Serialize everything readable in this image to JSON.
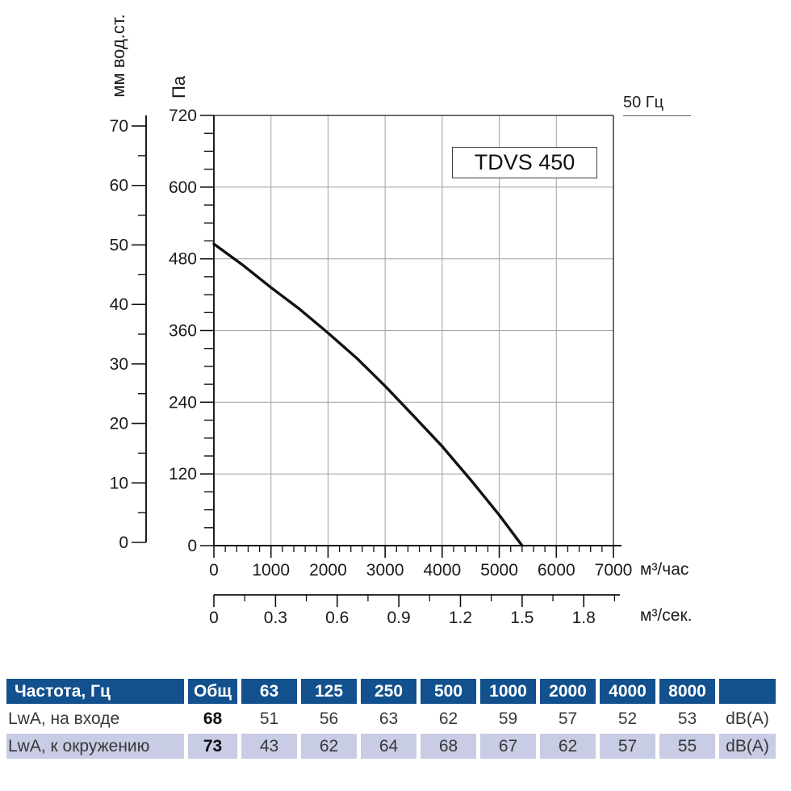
{
  "chart": {
    "model_label": "TDVS 450",
    "frequency_label": "50 Гц",
    "pa_axis_title": "Па",
    "mm_axis_title": "мм вод.ст.",
    "flow_hour_title": "м³/час",
    "flow_sec_title": "м³/сек."
  },
  "chart_data": {
    "type": "line",
    "title": "TDVS 450",
    "annotation": "50 Гц",
    "xlabel": "м³/час",
    "x2label": "м³/сек.",
    "ylabel": "Па",
    "y2label": "мм вод.ст.",
    "xlim": [
      0,
      7000
    ],
    "ylim": [
      0,
      720
    ],
    "grid": true,
    "x_ticks_m3h": [
      "0",
      "1000",
      "2000",
      "3000",
      "4000",
      "5000",
      "6000",
      "7000"
    ],
    "x_minor_step_m3h": 200,
    "x_ticks_m3s": [
      "0",
      "0.3",
      "0.6",
      "0.9",
      "1.2",
      "1.5",
      "1.8"
    ],
    "x_minor_step_m3s": 0.15,
    "y_ticks_pa": [
      "720",
      "600",
      "480",
      "360",
      "240",
      "120",
      "0"
    ],
    "y_minor_step_pa": 30,
    "y_ticks_mm": [
      "70",
      "60",
      "50",
      "40",
      "30",
      "20",
      "10",
      "0"
    ],
    "y_minor_step_mm": 5,
    "series": [
      {
        "name": "TDVS 450, 50 Гц",
        "color": "#111111",
        "points_m3h_pa": [
          [
            0,
            505
          ],
          [
            500,
            470
          ],
          [
            1000,
            432
          ],
          [
            1500,
            396
          ],
          [
            2000,
            356
          ],
          [
            2500,
            314
          ],
          [
            3000,
            267
          ],
          [
            3500,
            217
          ],
          [
            4000,
            166
          ],
          [
            4500,
            110
          ],
          [
            5000,
            51
          ],
          [
            5400,
            0
          ]
        ]
      }
    ]
  },
  "table": {
    "header": [
      "Частота, Гц",
      "Общ",
      "63",
      "125",
      "250",
      "500",
      "1000",
      "2000",
      "4000",
      "8000",
      ""
    ],
    "rows": [
      {
        "label": "LwA, на входе",
        "total": "68",
        "values": [
          "51",
          "56",
          "63",
          "62",
          "59",
          "57",
          "52",
          "53"
        ],
        "unit": "dB(A)"
      },
      {
        "label": "LwA, к окружению",
        "total": "73",
        "values": [
          "43",
          "62",
          "64",
          "68",
          "67",
          "62",
          "57",
          "55"
        ],
        "unit": "dB(A)"
      }
    ]
  },
  "colors": {
    "header_bg": "#12508E",
    "alt_row_bg": "#C8CCE4",
    "grid": "#A8A8A8",
    "frame": "#3F3F3F",
    "curve": "#111111"
  }
}
